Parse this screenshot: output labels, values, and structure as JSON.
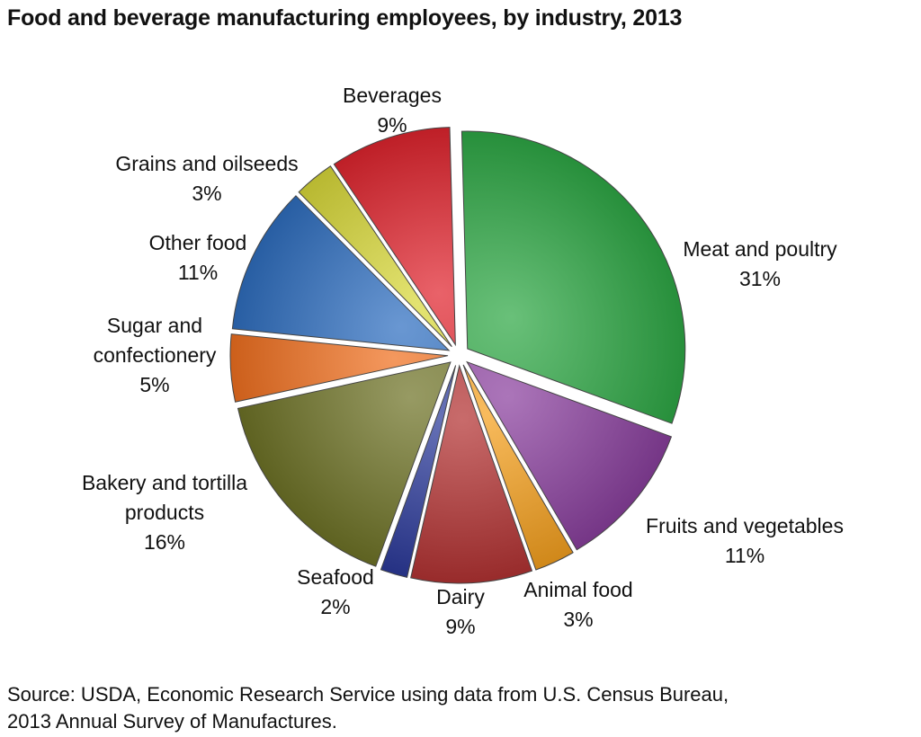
{
  "chart_data": {
    "type": "pie",
    "title": "Food and beverage manufacturing employees, by industry, 2013",
    "slices": [
      {
        "label": [
          "Meat and poultry"
        ],
        "value": 31,
        "value_label": "31%",
        "color": "#2ea845"
      },
      {
        "label": [
          "Fruits and vegetables"
        ],
        "value": 11,
        "value_label": "11%",
        "color": "#8a3f9e"
      },
      {
        "label": [
          "Animal food"
        ],
        "value": 3,
        "value_label": "3%",
        "color": "#f5a01e"
      },
      {
        "label": [
          "Dairy"
        ],
        "value": 9,
        "value_label": "9%",
        "color": "#b33232"
      },
      {
        "label": [
          "Seafood"
        ],
        "value": 2,
        "value_label": "2%",
        "color": "#2b3a9a"
      },
      {
        "label": [
          "Bakery and tortilla",
          "products"
        ],
        "value": 16,
        "value_label": "16%",
        "color": "#6f7327"
      },
      {
        "label": [
          "Sugar and",
          "confectionery"
        ],
        "value": 5,
        "value_label": "5%",
        "color": "#f07020"
      },
      {
        "label": [
          "Other food"
        ],
        "value": 11,
        "value_label": "11%",
        "color": "#2f6fc0"
      },
      {
        "label": [
          "Grains and oilseeds"
        ],
        "value": 3,
        "value_label": "3%",
        "color": "#d8d83a"
      },
      {
        "label": [
          "Beverages"
        ],
        "value": 9,
        "value_label": "9%",
        "color": "#e0252e"
      }
    ]
  },
  "source": {
    "line1": "Source: USDA, Economic Research Service using data from U.S. Census Bureau,",
    "line2": "2013 Annual Survey of Manufactures."
  }
}
